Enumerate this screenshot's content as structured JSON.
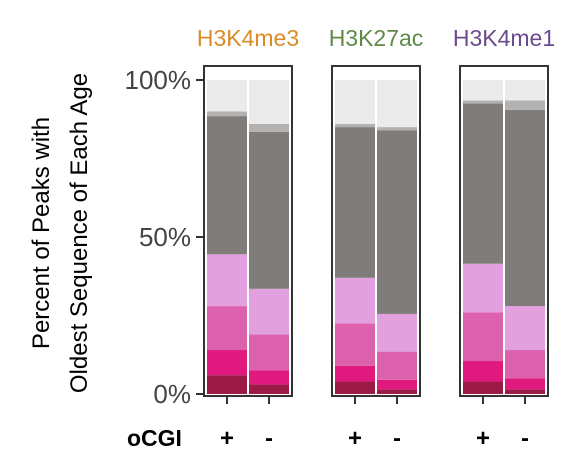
{
  "chart_data": {
    "type": "bar",
    "stacked": true,
    "ylabel_lines": [
      "Percent of Peaks with",
      "Oldest Sequence of Each Age"
    ],
    "yticks": [
      {
        "value": 0,
        "label": "0%"
      },
      {
        "value": 50,
        "label": "50%"
      },
      {
        "value": 100,
        "label": "100%"
      }
    ],
    "ylim": [
      0,
      100
    ],
    "x_title": "oCGI",
    "categories": [
      "+",
      "-"
    ],
    "layer_colors": [
      "#9c1b46",
      "#e0197f",
      "#dc62ae",
      "#e3a0df",
      "#7f7c79",
      "#b2b2b2",
      "#ebebeb"
    ],
    "panels": [
      {
        "title": "H3K4me3",
        "title_color": "#d98c26",
        "bars": [
          {
            "category": "+",
            "values": [
              6,
              8,
              14,
              16.5,
              44,
              1.5,
              10
            ]
          },
          {
            "category": "-",
            "values": [
              3,
              4.5,
              11.5,
              14.5,
              50,
              2.5,
              14
            ]
          }
        ]
      },
      {
        "title": "H3K27ac",
        "title_color": "#5f8a47",
        "bars": [
          {
            "category": "+",
            "values": [
              4,
              5,
              13.5,
              14.5,
              48,
              1,
              14
            ]
          },
          {
            "category": "-",
            "values": [
              1.5,
              3,
              9,
              12,
              58.5,
              1,
              15
            ]
          }
        ]
      },
      {
        "title": "H3K4me1",
        "title_color": "#6a4b8d",
        "bars": [
          {
            "category": "+",
            "values": [
              4,
              6.5,
              15.5,
              15.5,
              51,
              1,
              6.5
            ]
          },
          {
            "category": "-",
            "values": [
              1.5,
              3.5,
              9,
              14,
              62.5,
              3,
              6.5
            ]
          }
        ]
      }
    ]
  }
}
